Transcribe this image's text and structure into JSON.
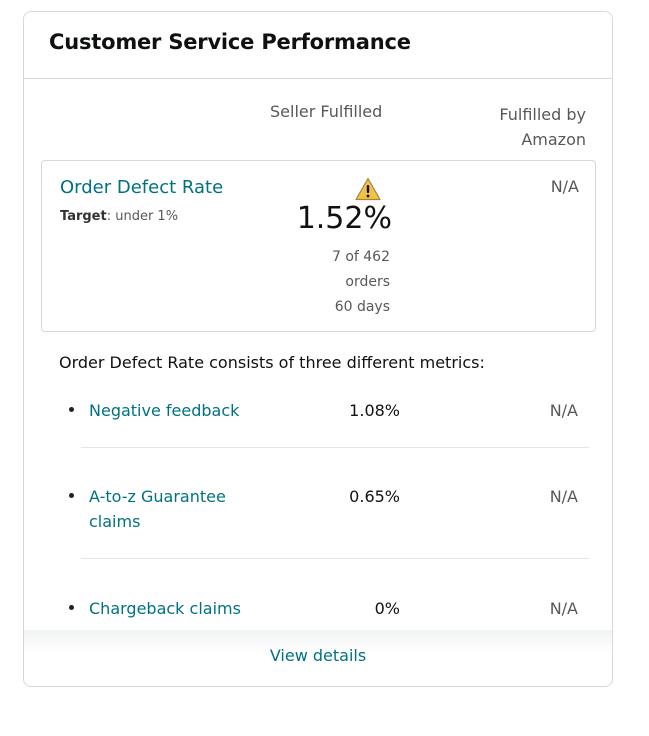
{
  "card": {
    "title": "Customer Service Performance"
  },
  "columns": {
    "seller": "Seller Fulfilled",
    "fba_line1": "Fulfilled by",
    "fba_line2": "Amazon"
  },
  "odr": {
    "title": "Order Defect Rate",
    "target_label": "Target",
    "target_value": ": under 1%",
    "value": "1.52%",
    "count": "7 of 462",
    "unit": "orders",
    "period": "60 days",
    "fba_value": "N/A",
    "warning_icon": "warning-triangle-icon",
    "warning_color": "#f0c14b"
  },
  "consists_text": "Order Defect Rate consists of three different metrics:",
  "metrics": [
    {
      "name_line1": "Negative feedback",
      "name_line2": "",
      "seller": "1.08%",
      "fba": "N/A"
    },
    {
      "name_line1": "A-to-z Guarantee",
      "name_line2": "claims",
      "seller": "0.65%",
      "fba": "N/A"
    },
    {
      "name_line1": "Chargeback claims",
      "name_line2": "",
      "seller": "0%",
      "fba": "N/A"
    }
  ],
  "view_details": "View details",
  "colors": {
    "link": "#007185",
    "muted": "#565959",
    "border": "#d5d9d9"
  }
}
